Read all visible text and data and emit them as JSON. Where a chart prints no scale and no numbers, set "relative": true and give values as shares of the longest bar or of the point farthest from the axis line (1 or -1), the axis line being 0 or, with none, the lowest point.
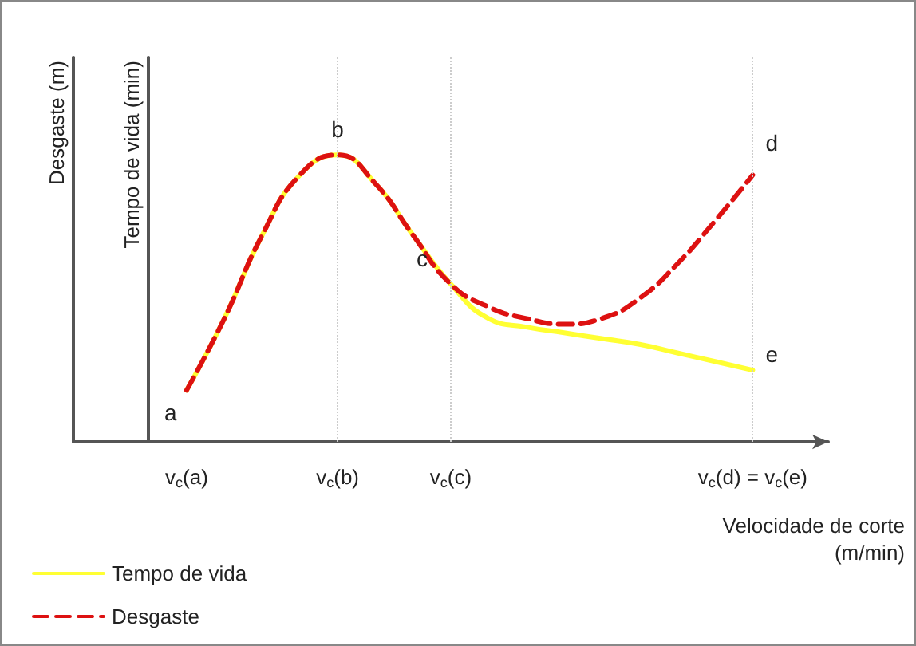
{
  "chart_data": {
    "type": "line",
    "relative": true,
    "ylabel": "Desgaste (m)",
    "y2label": "Tempo de vida (min)",
    "xlabel": "Velocidade de corte\n(m/min)",
    "categories": [
      null,
      null,
      null,
      "v$_{c}$(a)",
      null,
      null,
      null,
      "v$_{c}$(b)",
      null,
      null,
      "v$_{c}$(c)",
      null,
      null,
      null,
      null,
      null,
      null,
      null,
      "v$_{c}$(d) = v$_{c}$(e)",
      null,
      null
    ],
    "legend": "bottom left",
    "grid": false,
    "marker": "none",
    "series": [
      {
        "name": "Tempo de vida",
        "color": "#ffff33",
        "axis": "y2",
        "line_style": "solid",
        "values": [
          null,
          null,
          null,
          0.18,
          0.43,
          0.72,
          0.93,
          1.0,
          0.9,
          0.72,
          0.55,
          0.43,
          0.4,
          0.38,
          0.36,
          0.34,
          0.31,
          0.28,
          0.25,
          null,
          null
        ]
      },
      {
        "name": "Desgaste",
        "color": "#dd1111",
        "line_style": "dashed",
        "values": [
          null,
          null,
          null,
          0.18,
          0.43,
          0.72,
          0.93,
          1.0,
          0.9,
          0.72,
          0.55,
          0.47,
          0.43,
          0.41,
          0.43,
          0.5,
          0.62,
          0.77,
          0.93,
          null,
          null
        ]
      }
    ],
    "ref_lines": [
      {
        "axis": "x",
        "value": "v$_{c}$(b)",
        "line_style": "dotted",
        "color": "#cccccc"
      },
      {
        "axis": "x",
        "value": "v$_{c}$(c)",
        "line_style": "dotted",
        "color": "#cccccc"
      },
      {
        "axis": "x",
        "value": "v$_{c}$(d) = v$_{c}$(e)",
        "line_style": "dotted",
        "color": "#cccccc"
      }
    ],
    "annotations": [
      {
        "text": "a",
        "x": "v$_{c}$(a)",
        "y": 0.18
      },
      {
        "text": "b",
        "x": "v$_{c}$(b)",
        "y": 1.0
      },
      {
        "text": "c",
        "x": "v$_{c}$(c)",
        "y": 0.55
      },
      {
        "text": "d",
        "x": "v$_{c}$(d) = v$_{c}$(e)",
        "y": 0.93
      },
      {
        "text": "e",
        "x": "v$_{c}$(d) = v$_{c}$(e)",
        "y": 0.25
      }
    ]
  }
}
